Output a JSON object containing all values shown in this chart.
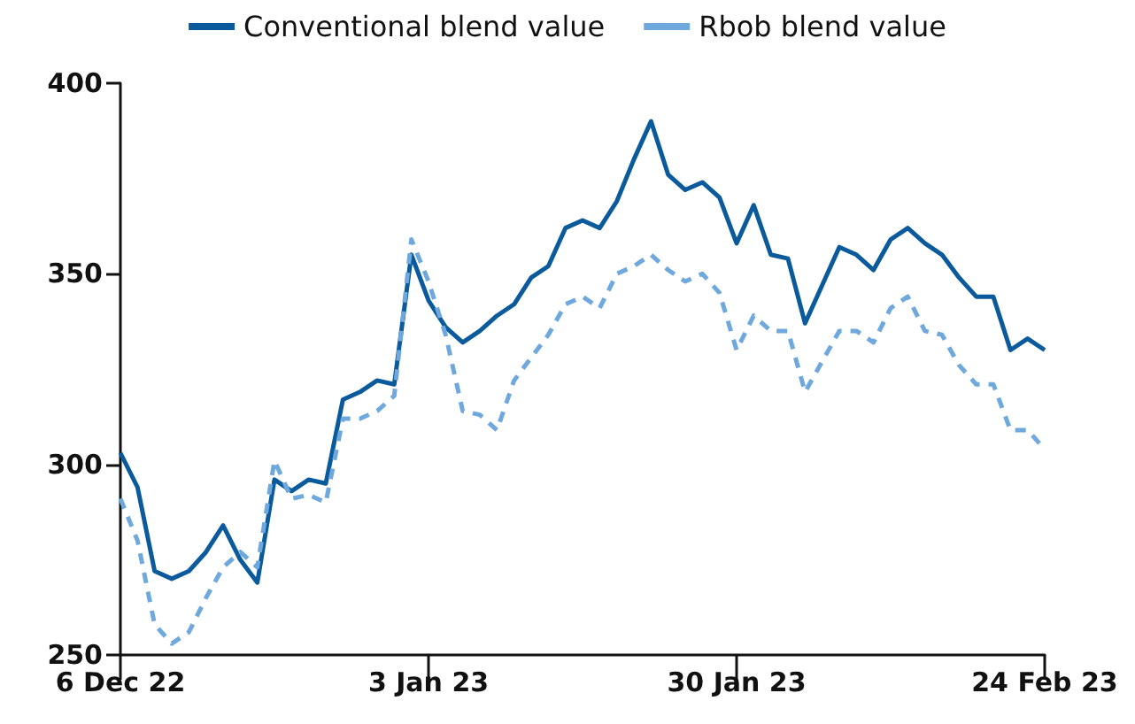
{
  "chart_data": {
    "type": "line",
    "categories": [
      "6 Dec 22",
      null,
      null,
      null,
      null,
      null,
      null,
      null,
      null,
      null,
      null,
      null,
      null,
      null,
      null,
      null,
      null,
      null,
      "3 Jan 23",
      null,
      null,
      null,
      null,
      null,
      null,
      null,
      null,
      null,
      null,
      null,
      null,
      null,
      null,
      null,
      null,
      null,
      "30 Jan 23",
      null,
      null,
      null,
      null,
      null,
      null,
      null,
      null,
      null,
      null,
      null,
      null,
      null,
      null,
      null,
      null,
      null,
      "24 Feb 23"
    ],
    "series": [
      {
        "name": "Conventional blend value",
        "color": "#0a5a9c",
        "line_style": "solid",
        "values": [
          303,
          294,
          272,
          270,
          272,
          277,
          284,
          275,
          269,
          296,
          293,
          296,
          295,
          317,
          319,
          322,
          321,
          355,
          343,
          336,
          332,
          335,
          339,
          342,
          349,
          352,
          362,
          364,
          362,
          369,
          380,
          390,
          376,
          372,
          374,
          370,
          358,
          368,
          355,
          354,
          337,
          347,
          357,
          355,
          351,
          359,
          362,
          358,
          355,
          349,
          344,
          344,
          330,
          333,
          330
        ]
      },
      {
        "name": "Rbob blend value",
        "color": "#6fa8dc",
        "line_style": "dashed",
        "values": [
          291,
          280,
          258,
          253,
          256,
          265,
          273,
          277,
          273,
          301,
          291,
          292,
          290,
          312,
          312,
          314,
          318,
          359,
          348,
          334,
          314,
          313,
          309,
          322,
          328,
          334,
          342,
          344,
          341,
          350,
          352,
          355,
          351,
          348,
          350,
          345,
          330,
          339,
          335,
          335,
          319,
          327,
          335,
          335,
          332,
          341,
          344,
          335,
          334,
          326,
          321,
          321,
          309,
          309,
          304
        ]
      }
    ],
    "ylim": [
      250,
      400
    ],
    "yticks": [
      250,
      300,
      350,
      400
    ],
    "legend": "top",
    "marker": "none",
    "grid": false
  }
}
